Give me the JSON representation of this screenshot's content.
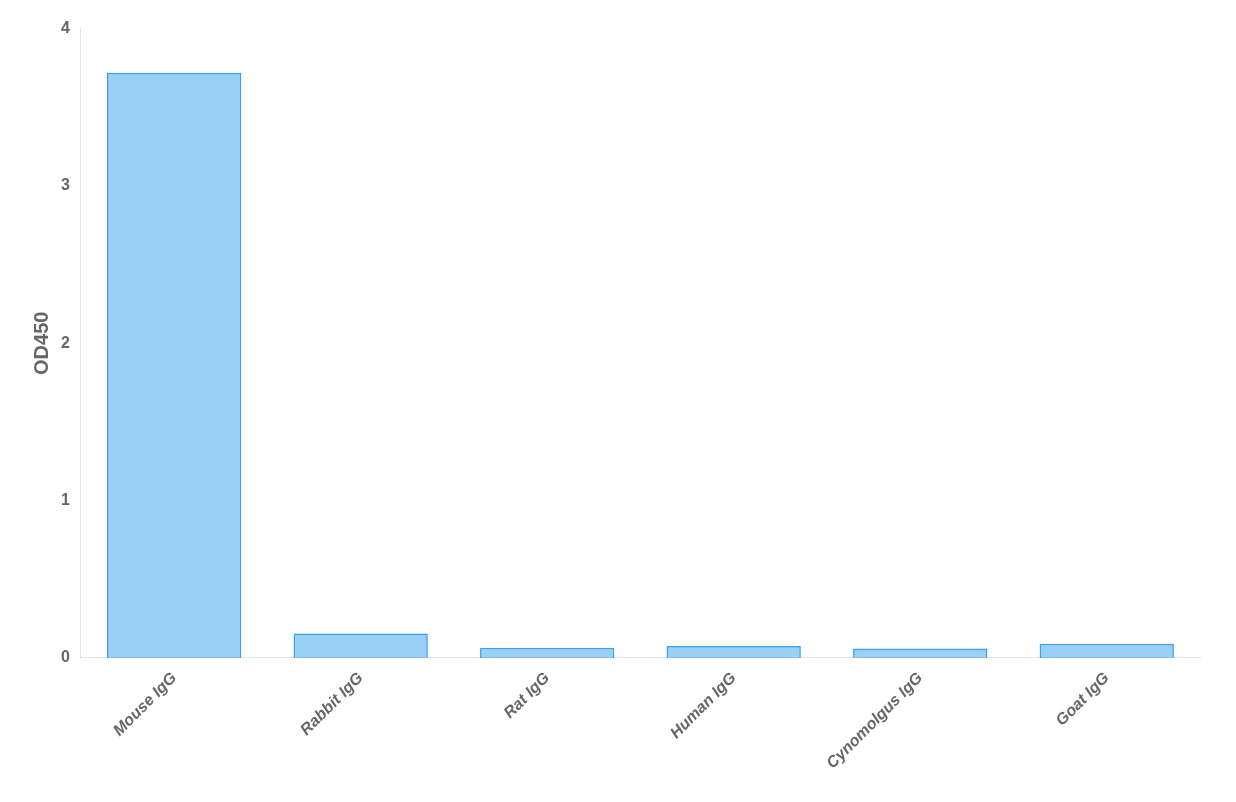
{
  "chart_data": {
    "type": "bar",
    "categories": [
      "Mouse IgG",
      "Rabbit IgG",
      "Rat IgG",
      "Human IgG",
      "Cynomolgus IgG",
      "Goat IgG"
    ],
    "values": [
      3.72,
      0.155,
      0.065,
      0.075,
      0.06,
      0.09
    ],
    "ylabel": "OD450",
    "ylim": [
      0,
      4
    ],
    "yticks": [
      0,
      1,
      2,
      3,
      4
    ],
    "grid": false
  }
}
